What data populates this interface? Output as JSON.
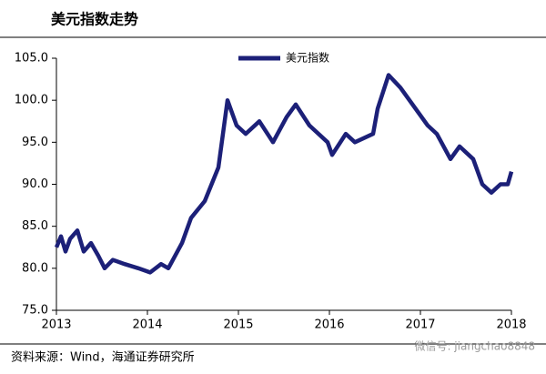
{
  "chart_data": {
    "type": "line",
    "title": "美元指数走势",
    "x": [
      2013.0,
      2013.05,
      2013.1,
      2013.15,
      2013.23,
      2013.3,
      2013.38,
      2013.46,
      2013.53,
      2013.62,
      2013.75,
      2013.9,
      2014.03,
      2014.15,
      2014.23,
      2014.38,
      2014.48,
      2014.63,
      2014.78,
      2014.88,
      2014.98,
      2015.08,
      2015.23,
      2015.38,
      2015.53,
      2015.63,
      2015.78,
      2015.98,
      2016.03,
      2016.18,
      2016.28,
      2016.48,
      2016.53,
      2016.65,
      2016.78,
      2016.88,
      2017.08,
      2017.18,
      2017.33,
      2017.43,
      2017.58,
      2017.68,
      2017.78,
      2017.88,
      2017.96,
      2018.0
    ],
    "series": [
      {
        "name": "美元指数",
        "color": "#1c2078",
        "values": [
          82.5,
          83.8,
          82.0,
          83.5,
          84.5,
          82.0,
          83.0,
          81.5,
          80.0,
          81.0,
          80.5,
          80.0,
          79.5,
          80.5,
          80.0,
          83.0,
          86.0,
          88.0,
          92.0,
          100.0,
          97.0,
          96.0,
          97.5,
          95.0,
          98.0,
          99.5,
          97.0,
          95.0,
          93.5,
          96.0,
          95.0,
          96.0,
          99.0,
          103.0,
          101.5,
          100.0,
          97.0,
          96.0,
          93.0,
          94.5,
          93.0,
          90.0,
          89.0,
          90.0,
          90.0,
          91.5
        ]
      }
    ],
    "xlim": [
      2013,
      2018
    ],
    "xticks": [
      2013,
      2014,
      2015,
      2016,
      2017,
      2018
    ],
    "ylim": [
      75,
      105
    ],
    "yticks": [
      {
        "value": 75,
        "label": "75.0"
      },
      {
        "value": 80,
        "label": "80.0"
      },
      {
        "value": 85,
        "label": "85.0"
      },
      {
        "value": 90,
        "label": "90.0"
      },
      {
        "value": 95,
        "label": "95.0"
      },
      {
        "value": 100,
        "label": "100.0"
      },
      {
        "value": 105,
        "label": "105.0"
      }
    ],
    "legend": "top"
  },
  "footer": {
    "source": "资料来源：Wind，海通证券研究所",
    "watermark": "微信号: jiangchao8848"
  }
}
